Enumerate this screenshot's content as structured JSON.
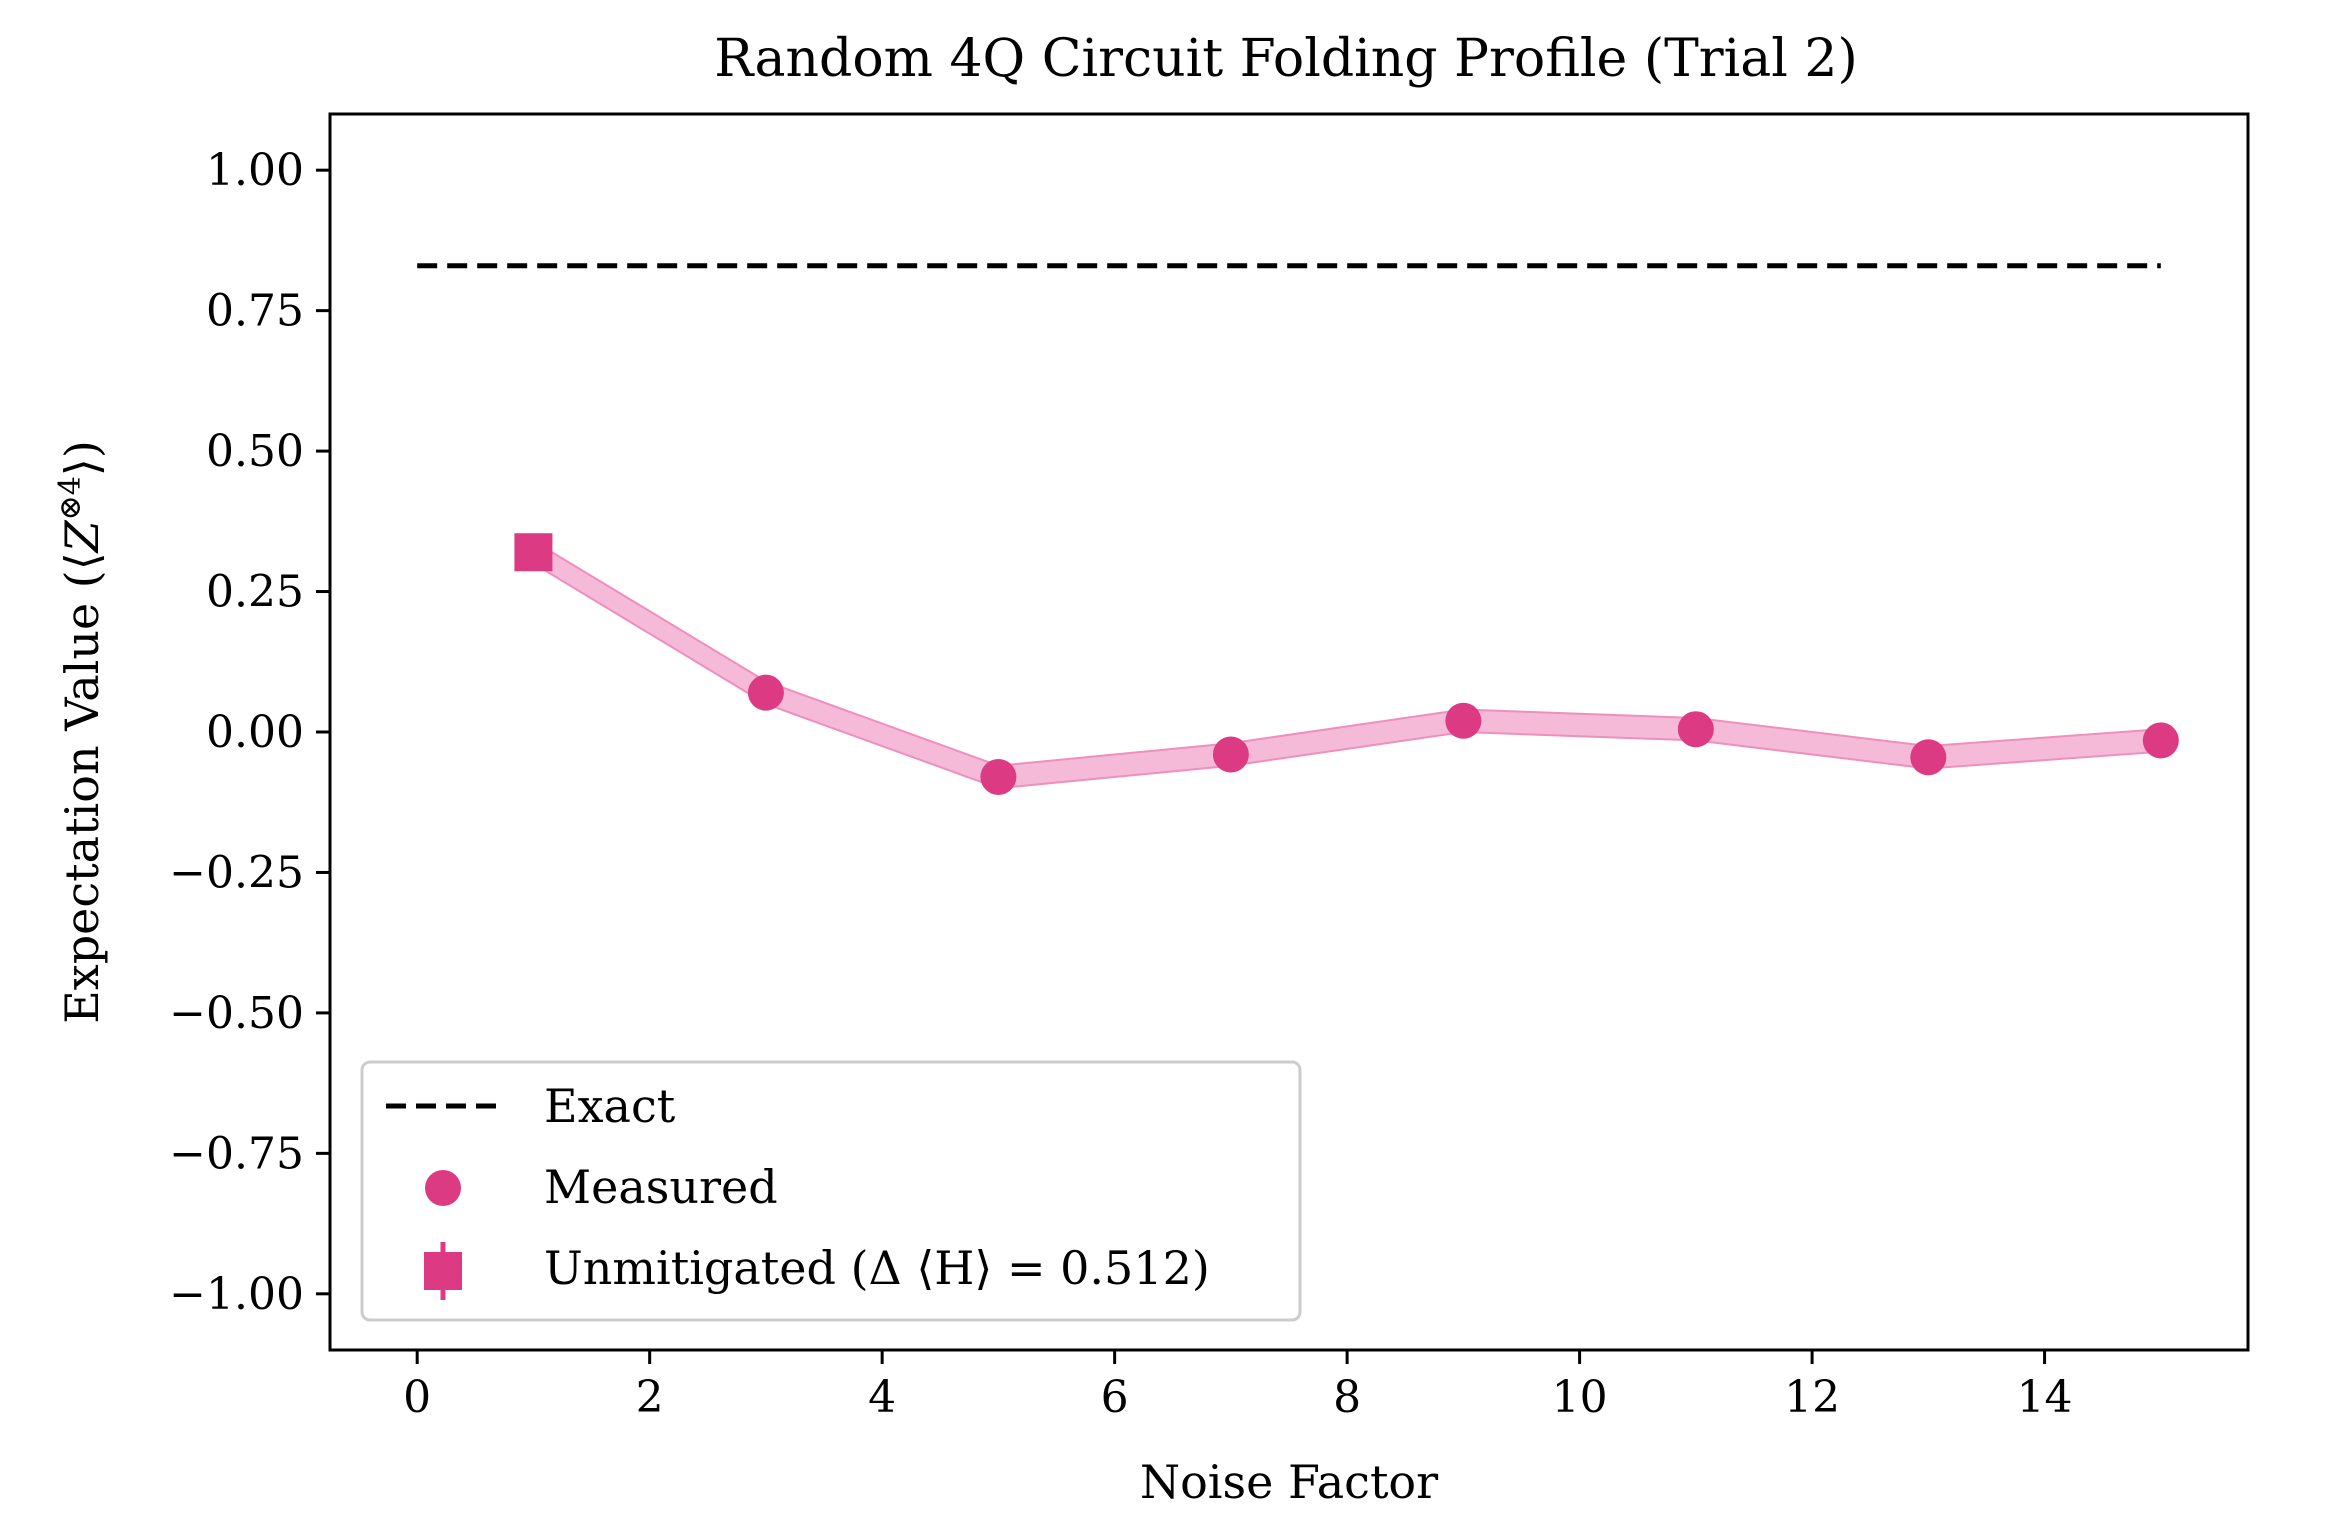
{
  "chart_data": {
    "type": "line",
    "title": "Random 4Q Circuit Folding Profile (Trial 2)",
    "xlabel": "Noise Factor",
    "ylabel_prefix": "Expectation Value (⟨",
    "ylabel_symbol": "Z",
    "ylabel_superscript": "⊗4",
    "ylabel_suffix": "⟩)",
    "xlim": [
      -0.75,
      15.75
    ],
    "ylim": [
      -1.1,
      1.1
    ],
    "x_ticks": [
      0,
      2,
      4,
      6,
      8,
      10,
      12,
      14
    ],
    "x_tick_labels": [
      "0",
      "2",
      "4",
      "6",
      "8",
      "10",
      "12",
      "14"
    ],
    "y_ticks": [
      1.0,
      0.75,
      0.5,
      0.25,
      0.0,
      -0.25,
      -0.5,
      -0.75,
      -1.0
    ],
    "y_tick_labels": [
      "1.00",
      "0.75",
      "0.50",
      "0.25",
      "0.00",
      "−0.25",
      "−0.50",
      "−0.75",
      "−1.00"
    ],
    "grid": false,
    "legend_placement": "lower-left",
    "exact": {
      "name": "Exact",
      "value": 0.83,
      "x_range": [
        0,
        15
      ],
      "color": "#000000"
    },
    "measured": {
      "name": "Measured",
      "color": "#dd3a84",
      "band_color": "#f4b3d3",
      "x": [
        3,
        5,
        7,
        9,
        11,
        13,
        15
      ],
      "y": [
        0.07,
        -0.08,
        -0.04,
        0.02,
        0.005,
        -0.045,
        -0.015
      ]
    },
    "unmitigated": {
      "name": "Unmitigated (Δ ⟨H⟩ = 0.512)",
      "color": "#dd3a84",
      "x": 1,
      "y": 0.32
    },
    "band_halfwidth": 0.02
  }
}
